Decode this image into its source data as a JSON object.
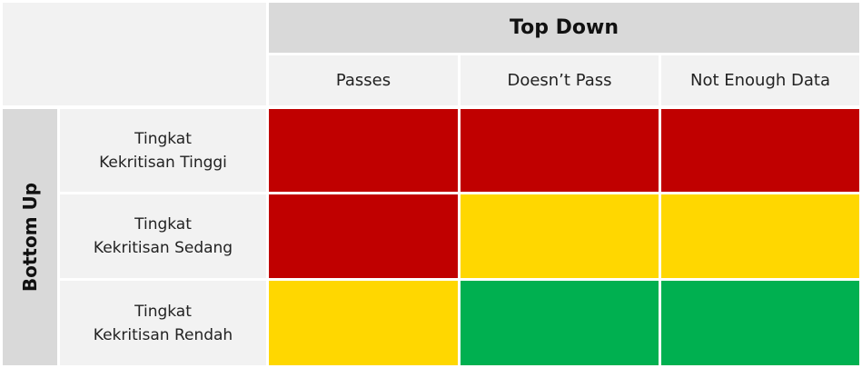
{
  "header": {
    "title": "Top Down"
  },
  "columns": [
    "Passes",
    "Doesn’t Pass",
    "Not Enough Data"
  ],
  "side": {
    "title": "Bottom Up"
  },
  "rows": [
    {
      "line1": "Tingkat",
      "line2": "Kekritisan Tinggi"
    },
    {
      "line1": "Tingkat",
      "line2": "Kekritisan Sedang"
    },
    {
      "line1": "Tingkat",
      "line2": "Kekritisan Rendah"
    }
  ],
  "colors": {
    "red": "#c00000",
    "yellow": "#ffd700",
    "green": "#00b050"
  },
  "matrix": [
    [
      "red",
      "red",
      "red"
    ],
    [
      "red",
      "yellow",
      "yellow"
    ],
    [
      "yellow",
      "green",
      "green"
    ]
  ]
}
